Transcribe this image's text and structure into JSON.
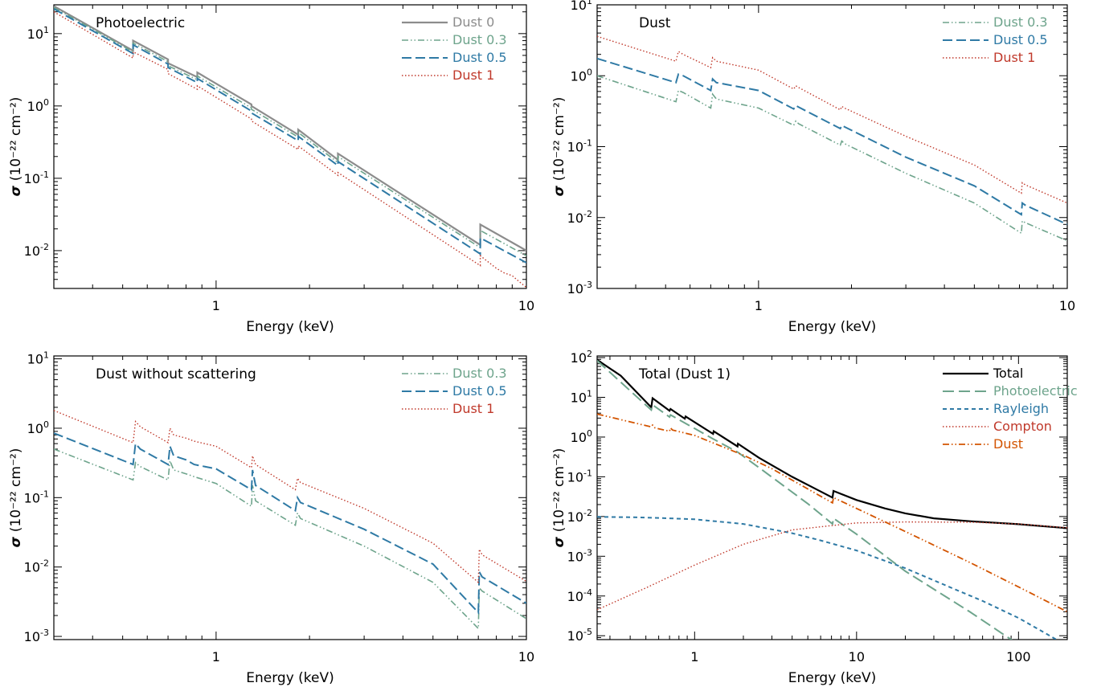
{
  "chart_data": [
    {
      "type": "line",
      "title": "Photoelectric",
      "xlabel": "Energy (keV)",
      "ylabel_symbol": "σ",
      "ylabel_unit": "(10⁻²² cm⁻²)",
      "x_scale": "log",
      "y_scale": "log",
      "xlim": [
        0.3,
        10
      ],
      "ylim": [
        0.003,
        25
      ],
      "legend_position": "top-right",
      "x_ticks": [
        {
          "v": 1,
          "label": "1"
        },
        {
          "v": 10,
          "label": "10"
        }
      ],
      "y_ticks": [
        {
          "v": 0.01,
          "b": "10",
          "e": "-2"
        },
        {
          "v": 0.1,
          "b": "10",
          "e": "-1"
        },
        {
          "v": 1,
          "b": "10",
          "e": "0"
        },
        {
          "v": 10,
          "b": "10",
          "e": "1"
        }
      ],
      "series": [
        {
          "name": "Dust 0",
          "color": "#8c8c8c",
          "dash": "solid",
          "width": 2.2,
          "x": [
            0.3,
            0.54,
            0.54,
            0.7,
            0.7,
            0.87,
            0.87,
            1.3,
            1.3,
            1.84,
            1.84,
            2.47,
            2.47,
            7.1,
            7.1,
            10
          ],
          "y": [
            24,
            5.8,
            8.0,
            4.4,
            3.9,
            2.5,
            2.9,
            1.05,
            1.0,
            0.4,
            0.47,
            0.18,
            0.22,
            0.012,
            0.023,
            0.01
          ]
        },
        {
          "name": "Dust 0.3",
          "color": "#6ea48c",
          "dash": "dashdotdot",
          "width": 1.6,
          "x": [
            0.3,
            0.54,
            0.54,
            0.7,
            0.7,
            0.87,
            0.87,
            1.3,
            1.3,
            1.84,
            1.84,
            2.47,
            2.47,
            7.1,
            7.1,
            10
          ],
          "y": [
            23,
            5.6,
            7.4,
            4.1,
            3.6,
            2.3,
            2.6,
            0.94,
            0.9,
            0.37,
            0.43,
            0.165,
            0.2,
            0.011,
            0.019,
            0.0085
          ]
        },
        {
          "name": "Dust 0.5",
          "color": "#2f7aa5",
          "dash": "dash",
          "width": 2,
          "x": [
            0.3,
            0.54,
            0.54,
            0.7,
            0.7,
            0.87,
            0.87,
            1.3,
            1.3,
            1.84,
            1.84,
            2.47,
            2.47,
            7.1,
            7.1,
            10
          ],
          "y": [
            22,
            5.3,
            7.0,
            3.8,
            3.4,
            2.1,
            2.4,
            0.85,
            0.8,
            0.33,
            0.38,
            0.15,
            0.17,
            0.009,
            0.015,
            0.0068
          ]
        },
        {
          "name": "Dust 1",
          "color": "#c0392b",
          "dash": "dot",
          "width": 1.4,
          "x": [
            0.3,
            0.54,
            0.54,
            0.7,
            0.7,
            0.87,
            0.87,
            1.3,
            1.3,
            1.84,
            1.84,
            2.47,
            2.47,
            7.1,
            7.1,
            8,
            8.5,
            9,
            9.5,
            10
          ],
          "y": [
            20,
            4.6,
            5.6,
            3.2,
            2.8,
            1.7,
            1.9,
            0.66,
            0.62,
            0.25,
            0.28,
            0.11,
            0.12,
            0.0062,
            0.0085,
            0.0057,
            0.0049,
            0.0045,
            0.0037,
            0.0031
          ]
        }
      ]
    },
    {
      "type": "line",
      "title": "Dust",
      "xlabel": "Energy (keV)",
      "ylabel_symbol": "σ",
      "ylabel_unit": "(10⁻²² cm⁻²)",
      "x_scale": "log",
      "y_scale": "log",
      "xlim": [
        0.3,
        10
      ],
      "ylim": [
        0.001,
        10
      ],
      "legend_position": "top-right",
      "x_ticks": [
        {
          "v": 1,
          "label": "1"
        },
        {
          "v": 10,
          "label": "10"
        }
      ],
      "y_ticks": [
        {
          "v": 0.001,
          "b": "10",
          "e": "-3"
        },
        {
          "v": 0.01,
          "b": "10",
          "e": "-2"
        },
        {
          "v": 0.1,
          "b": "10",
          "e": "-1"
        },
        {
          "v": 1,
          "b": "10",
          "e": "0"
        },
        {
          "v": 10,
          "b": "10",
          "e": "1"
        }
      ],
      "series": [
        {
          "name": "Dust 0.3",
          "color": "#6ea48c",
          "dash": "dashdotdot",
          "width": 1.6,
          "x": [
            0.3,
            0.54,
            0.55,
            0.57,
            0.7,
            0.71,
            0.73,
            1.0,
            1.3,
            1.32,
            1.35,
            1.84,
            1.86,
            1.9,
            3.0,
            5.0,
            7.1,
            7.15,
            7.3,
            10
          ],
          "y": [
            1.0,
            0.43,
            0.62,
            0.58,
            0.35,
            0.55,
            0.47,
            0.35,
            0.2,
            0.23,
            0.21,
            0.105,
            0.12,
            0.11,
            0.042,
            0.016,
            0.006,
            0.009,
            0.0085,
            0.0047
          ]
        },
        {
          "name": "Dust 0.5",
          "color": "#2f7aa5",
          "dash": "dash",
          "width": 2,
          "x": [
            0.3,
            0.54,
            0.55,
            0.57,
            0.7,
            0.71,
            0.73,
            1.0,
            1.3,
            1.32,
            1.35,
            1.84,
            1.86,
            1.9,
            3.0,
            5.0,
            7.1,
            7.15,
            7.3,
            10
          ],
          "y": [
            1.75,
            0.8,
            1.05,
            1.0,
            0.62,
            0.9,
            0.8,
            0.62,
            0.34,
            0.38,
            0.36,
            0.18,
            0.2,
            0.19,
            0.071,
            0.028,
            0.011,
            0.016,
            0.015,
            0.008
          ]
        },
        {
          "name": "Dust 1",
          "color": "#c0392b",
          "dash": "dot",
          "width": 1.4,
          "x": [
            0.3,
            0.54,
            0.55,
            0.57,
            0.7,
            0.71,
            0.73,
            1.0,
            1.3,
            1.32,
            1.35,
            1.84,
            1.86,
            1.9,
            3.0,
            5.0,
            7.1,
            7.15,
            7.3,
            10
          ],
          "y": [
            3.6,
            1.6,
            2.2,
            2.0,
            1.3,
            1.8,
            1.6,
            1.2,
            0.65,
            0.72,
            0.68,
            0.33,
            0.37,
            0.35,
            0.14,
            0.055,
            0.022,
            0.031,
            0.029,
            0.016
          ]
        }
      ]
    },
    {
      "type": "line",
      "title": "Dust without scattering",
      "xlabel": "Energy (keV)",
      "ylabel_symbol": "σ",
      "ylabel_unit": "(10⁻²² cm⁻²)",
      "x_scale": "log",
      "y_scale": "log",
      "xlim": [
        0.3,
        10
      ],
      "ylim": [
        0.0009,
        11
      ],
      "legend_position": "top-right",
      "x_ticks": [
        {
          "v": 1,
          "label": "1"
        },
        {
          "v": 10,
          "label": "10"
        }
      ],
      "y_ticks": [
        {
          "v": 0.001,
          "b": "10",
          "e": "-3"
        },
        {
          "v": 0.01,
          "b": "10",
          "e": "-2"
        },
        {
          "v": 0.1,
          "b": "10",
          "e": "-1"
        },
        {
          "v": 1,
          "b": "10",
          "e": "0"
        },
        {
          "v": 10,
          "b": "10",
          "e": "1"
        }
      ],
      "series": [
        {
          "name": "Dust 0.3",
          "color": "#6ea48c",
          "dash": "dashdotdot",
          "width": 1.6,
          "x": [
            0.3,
            0.54,
            0.55,
            0.57,
            0.7,
            0.71,
            0.73,
            0.8,
            0.85,
            1.0,
            1.3,
            1.31,
            1.34,
            1.8,
            1.83,
            1.87,
            3.0,
            5.0,
            7.0,
            7.05,
            7.2,
            10
          ],
          "y": [
            0.5,
            0.18,
            0.32,
            0.28,
            0.18,
            0.34,
            0.25,
            0.22,
            0.2,
            0.16,
            0.075,
            0.15,
            0.09,
            0.04,
            0.06,
            0.05,
            0.02,
            0.006,
            0.0013,
            0.005,
            0.0045,
            0.0018
          ]
        },
        {
          "name": "Dust 0.5",
          "color": "#2f7aa5",
          "dash": "dash",
          "width": 2,
          "x": [
            0.3,
            0.54,
            0.55,
            0.57,
            0.7,
            0.71,
            0.73,
            0.8,
            0.85,
            1.0,
            1.3,
            1.31,
            1.34,
            1.8,
            1.83,
            1.87,
            3.0,
            5.0,
            7.0,
            7.05,
            7.2,
            10
          ],
          "y": [
            0.85,
            0.3,
            0.6,
            0.5,
            0.3,
            0.55,
            0.4,
            0.35,
            0.3,
            0.26,
            0.13,
            0.25,
            0.15,
            0.065,
            0.1,
            0.085,
            0.035,
            0.011,
            0.0022,
            0.0085,
            0.0072,
            0.003
          ]
        },
        {
          "name": "Dust 1",
          "color": "#c0392b",
          "dash": "dot",
          "width": 1.4,
          "x": [
            0.3,
            0.54,
            0.55,
            0.57,
            0.7,
            0.71,
            0.73,
            0.8,
            0.85,
            1.0,
            1.3,
            1.31,
            1.34,
            1.8,
            1.83,
            1.87,
            3.0,
            5.0,
            7.0,
            7.05,
            7.2,
            10
          ],
          "y": [
            1.8,
            0.62,
            1.25,
            1.05,
            0.62,
            1.0,
            0.8,
            0.72,
            0.65,
            0.55,
            0.27,
            0.4,
            0.3,
            0.13,
            0.19,
            0.165,
            0.07,
            0.022,
            0.006,
            0.018,
            0.015,
            0.0062
          ]
        }
      ]
    },
    {
      "type": "line",
      "title": "Total (Dust 1)",
      "xlabel": "Energy (keV)",
      "ylabel_symbol": "σ",
      "ylabel_unit": "(10⁻²² cm⁻²)",
      "x_scale": "log",
      "y_scale": "log",
      "xlim": [
        0.25,
        200
      ],
      "ylim": [
        8e-06,
        110
      ],
      "legend_position": "top-right",
      "x_ticks": [
        {
          "v": 1,
          "label": "1"
        },
        {
          "v": 10,
          "label": "10"
        },
        {
          "v": 100,
          "label": "100"
        }
      ],
      "y_ticks": [
        {
          "v": 1e-05,
          "b": "10",
          "e": "-5"
        },
        {
          "v": 0.0001,
          "b": "10",
          "e": "-4"
        },
        {
          "v": 0.001,
          "b": "10",
          "e": "-3"
        },
        {
          "v": 0.01,
          "b": "10",
          "e": "-2"
        },
        {
          "v": 0.1,
          "b": "10",
          "e": "-1"
        },
        {
          "v": 1,
          "b": "10",
          "e": "0"
        },
        {
          "v": 10,
          "b": "10",
          "e": "1"
        },
        {
          "v": 100,
          "b": "10",
          "e": "2"
        }
      ],
      "series": [
        {
          "name": "Total",
          "color": "#000000",
          "dash": "solid",
          "width": 2.2,
          "x": [
            0.25,
            0.35,
            0.54,
            0.55,
            0.7,
            0.71,
            0.87,
            0.88,
            1.3,
            1.31,
            1.84,
            1.85,
            2.5,
            4.0,
            7.1,
            7.2,
            10,
            15,
            20,
            30,
            50,
            100,
            200
          ],
          "y": [
            88,
            35,
            5.6,
            9.5,
            4.6,
            5.1,
            2.9,
            3.3,
            1.2,
            1.4,
            0.58,
            0.68,
            0.3,
            0.1,
            0.03,
            0.044,
            0.026,
            0.016,
            0.012,
            0.009,
            0.0076,
            0.0064,
            0.0051
          ]
        },
        {
          "name": "Photoelectric",
          "color": "#6ea48c",
          "dash": "longdash",
          "width": 2,
          "x": [
            0.25,
            0.54,
            0.55,
            0.7,
            0.71,
            1.3,
            1.84,
            2.5,
            5.0,
            7.1,
            7.2,
            10,
            20,
            50,
            70,
            100
          ],
          "y": [
            84,
            4.8,
            6.5,
            3.2,
            3.6,
            0.9,
            0.42,
            0.17,
            0.021,
            0.0065,
            0.009,
            0.0036,
            0.00042,
            4e-05,
            1.6e-05,
            6e-06
          ]
        },
        {
          "name": "Rayleigh",
          "color": "#2f7aa5",
          "dash": "shortdash",
          "width": 2,
          "x": [
            0.25,
            0.4,
            0.6,
            1.0,
            2.0,
            4.0,
            6.0,
            10,
            20,
            40,
            60,
            100,
            150,
            200
          ],
          "y": [
            0.0098,
            0.0096,
            0.0092,
            0.0085,
            0.0065,
            0.0038,
            0.0025,
            0.0014,
            0.0005,
            0.00015,
            7.5e-05,
            2.8e-05,
            1.1e-05,
            5.5e-06
          ]
        },
        {
          "name": "Compton",
          "color": "#c0392b",
          "dash": "dot",
          "width": 1.4,
          "x": [
            0.25,
            0.5,
            1.0,
            2.0,
            4.0,
            10,
            20,
            50,
            100,
            200
          ],
          "y": [
            4.5e-05,
            0.00016,
            0.0006,
            0.002,
            0.0046,
            0.0069,
            0.0073,
            0.0072,
            0.0065,
            0.0052
          ]
        },
        {
          "name": "Dust",
          "color": "#d35400",
          "dash": "dashdotdot",
          "width": 1.8,
          "x": [
            0.25,
            0.54,
            0.55,
            0.57,
            0.7,
            0.71,
            0.73,
            1.0,
            2.0,
            3.0,
            7.1,
            7.2,
            10,
            20,
            50,
            100,
            200
          ],
          "y": [
            3.8,
            1.8,
            2.0,
            1.7,
            1.4,
            1.7,
            1.5,
            1.1,
            0.35,
            0.16,
            0.022,
            0.03,
            0.016,
            0.0042,
            0.0007,
            0.00017,
            4e-05
          ]
        }
      ]
    }
  ]
}
